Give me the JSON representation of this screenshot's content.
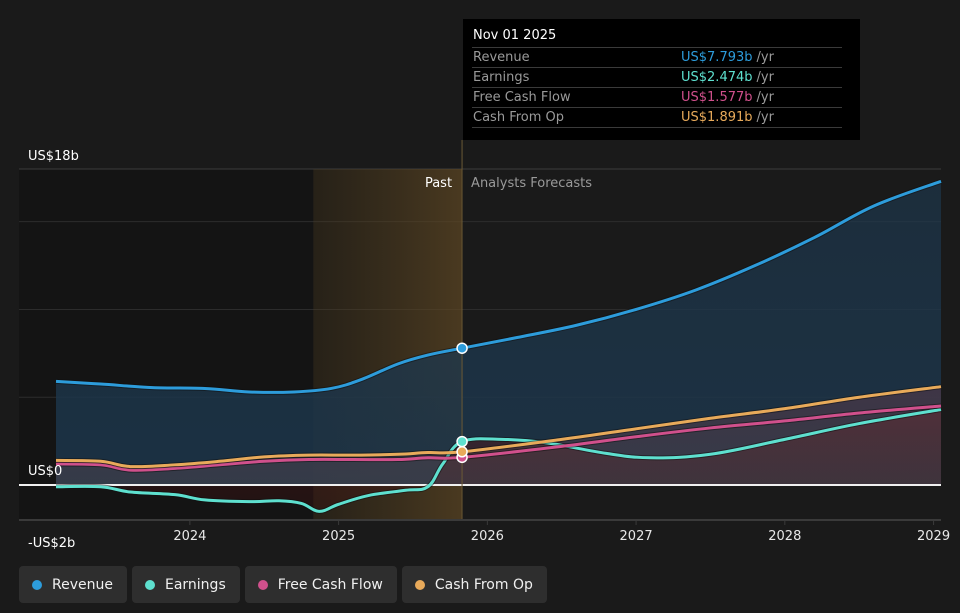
{
  "tooltip": {
    "date": "Nov 01 2025",
    "rows": [
      {
        "name": "Revenue",
        "value": "US$7.793b",
        "unit": "/yr",
        "color": "#2d9cdb"
      },
      {
        "name": "Earnings",
        "value": "US$2.474b",
        "unit": "/yr",
        "color": "#5ee0cf"
      },
      {
        "name": "Free Cash Flow",
        "value": "US$1.577b",
        "unit": "/yr",
        "color": "#d0508c"
      },
      {
        "name": "Cash From Op",
        "value": "US$1.891b",
        "unit": "/yr",
        "color": "#e8aa5a"
      }
    ]
  },
  "legend": [
    {
      "label": "Revenue",
      "color": "#2d9cdb"
    },
    {
      "label": "Earnings",
      "color": "#5ee0cf"
    },
    {
      "label": "Free Cash Flow",
      "color": "#d0508c"
    },
    {
      "label": "Cash From Op",
      "color": "#e8aa5a"
    }
  ],
  "chart_data": {
    "type": "line",
    "title": "",
    "xlabel": "",
    "ylabel": "",
    "units": "US$ billions",
    "xlim": [
      2023.1,
      2029.05
    ],
    "ylim": [
      -2,
      18
    ],
    "y_tick_labels": [
      {
        "value": 18,
        "label": "US$18b"
      },
      {
        "value": 0,
        "label": "US$0"
      },
      {
        "value": -2,
        "label": "-US$2b"
      }
    ],
    "gridlines_at": [
      18,
      15,
      10,
      5,
      0
    ],
    "x_ticks": [
      {
        "value": 2024,
        "label": "2024"
      },
      {
        "value": 2025,
        "label": "2025"
      },
      {
        "value": 2026,
        "label": "2026"
      },
      {
        "value": 2027,
        "label": "2027"
      },
      {
        "value": 2028,
        "label": "2028"
      },
      {
        "value": 2029,
        "label": "2029"
      }
    ],
    "past_divider": 2025.83,
    "highlight_start": 2024.83,
    "past_label": "Past",
    "forecast_label": "Analysts Forecasts",
    "legend_position": "bottom",
    "series": [
      {
        "name": "Revenue",
        "color": "#2d9cdb",
        "x": [
          2023.1,
          2023.4,
          2023.75,
          2024.1,
          2024.4,
          2024.7,
          2024.95,
          2025.15,
          2025.4,
          2025.6,
          2025.83,
          2026.2,
          2026.6,
          2027.0,
          2027.4,
          2027.8,
          2028.2,
          2028.6,
          2029.05
        ],
        "values": [
          5.9,
          5.75,
          5.55,
          5.5,
          5.3,
          5.3,
          5.5,
          6.0,
          6.9,
          7.4,
          7.793,
          8.4,
          9.1,
          10.0,
          11.1,
          12.5,
          14.1,
          15.9,
          17.3
        ]
      },
      {
        "name": "Earnings",
        "color": "#5ee0cf",
        "x": [
          2023.1,
          2023.4,
          2023.6,
          2023.9,
          2024.1,
          2024.4,
          2024.6,
          2024.75,
          2024.87,
          2025.0,
          2025.2,
          2025.45,
          2025.6,
          2025.7,
          2025.83,
          2026.1,
          2026.4,
          2026.8,
          2027.1,
          2027.5,
          2028.0,
          2028.5,
          2029.05
        ],
        "values": [
          -0.1,
          -0.1,
          -0.4,
          -0.55,
          -0.85,
          -0.95,
          -0.9,
          -1.05,
          -1.5,
          -1.1,
          -0.6,
          -0.3,
          -0.1,
          1.2,
          2.474,
          2.6,
          2.4,
          1.8,
          1.55,
          1.75,
          2.6,
          3.5,
          4.3
        ]
      },
      {
        "name": "Free Cash Flow",
        "color": "#d0508c",
        "x": [
          2023.1,
          2023.4,
          2023.6,
          2023.9,
          2024.2,
          2024.5,
          2024.8,
          2025.1,
          2025.4,
          2025.6,
          2025.83,
          2026.5,
          2027.0,
          2027.5,
          2028.0,
          2028.5,
          2029.05
        ],
        "values": [
          1.2,
          1.15,
          0.85,
          0.95,
          1.15,
          1.35,
          1.45,
          1.45,
          1.45,
          1.55,
          1.577,
          2.2,
          2.75,
          3.25,
          3.65,
          4.1,
          4.5
        ]
      },
      {
        "name": "Cash From Op",
        "color": "#e8aa5a",
        "x": [
          2023.1,
          2023.4,
          2023.6,
          2023.9,
          2024.2,
          2024.5,
          2024.8,
          2025.1,
          2025.4,
          2025.6,
          2025.83,
          2026.5,
          2027.0,
          2027.5,
          2028.0,
          2028.5,
          2029.05
        ],
        "values": [
          1.4,
          1.35,
          1.05,
          1.15,
          1.35,
          1.6,
          1.7,
          1.7,
          1.75,
          1.85,
          1.891,
          2.6,
          3.2,
          3.8,
          4.35,
          5.0,
          5.6
        ]
      }
    ]
  }
}
